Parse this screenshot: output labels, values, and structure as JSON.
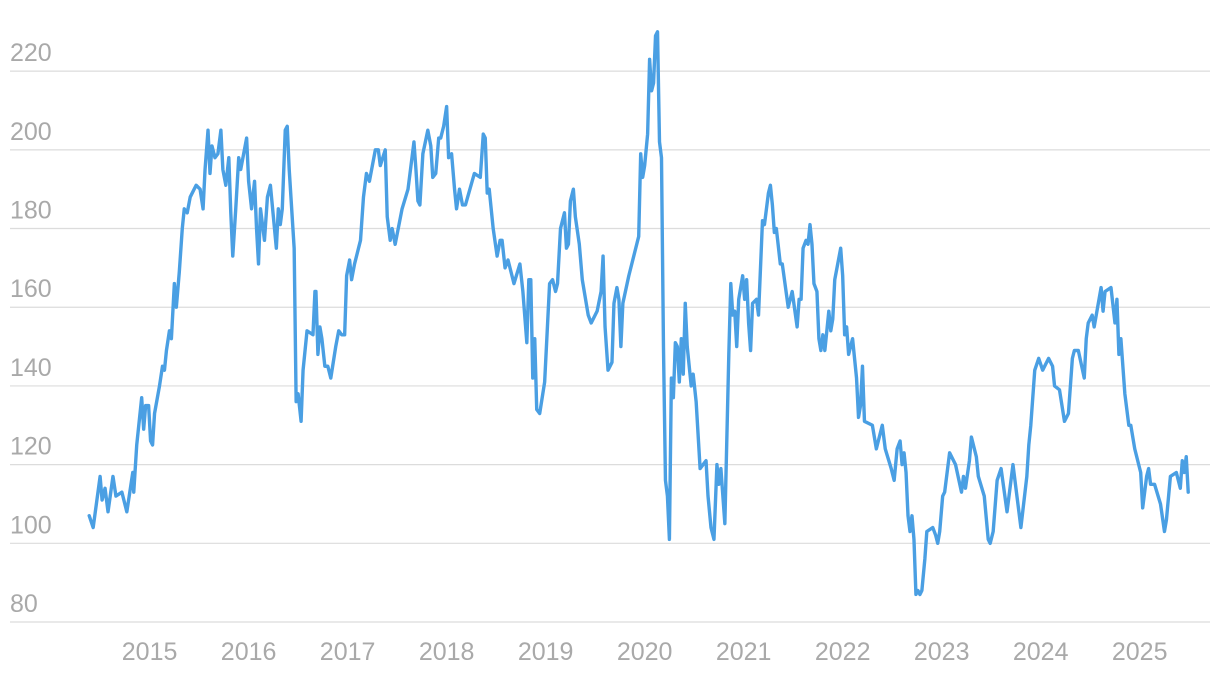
{
  "chart_data": {
    "type": "line",
    "color": "#4a9fe3",
    "grid": true,
    "xlim": [
      2013.59,
      2025.71
    ],
    "xticks": [
      2015,
      2016,
      2017,
      2018,
      2019,
      2020,
      2021,
      2022,
      2023,
      2024,
      2025
    ],
    "ylim": [
      80,
      230
    ],
    "yticks": [
      80,
      100,
      120,
      140,
      160,
      180,
      200,
      220
    ],
    "x": [
      2014.39,
      2014.43,
      2014.5,
      2014.52,
      2014.55,
      2014.58,
      2014.63,
      2014.66,
      2014.72,
      2014.77,
      2014.83,
      2014.84,
      2014.87,
      2014.92,
      2014.94,
      2014.96,
      2014.99,
      2015.01,
      2015.03,
      2015.05,
      2015.1,
      2015.13,
      2015.15,
      2015.17,
      2015.2,
      2015.22,
      2015.25,
      2015.27,
      2015.3,
      2015.33,
      2015.35,
      2015.38,
      2015.41,
      2015.47,
      2015.51,
      2015.54,
      2015.56,
      2015.59,
      2015.61,
      2015.63,
      2015.66,
      2015.69,
      2015.72,
      2015.74,
      2015.77,
      2015.8,
      2015.82,
      2015.84,
      2015.87,
      2015.9,
      2015.92,
      2015.98,
      2016.0,
      2016.03,
      2016.06,
      2016.08,
      2016.1,
      2016.12,
      2016.16,
      2016.19,
      2016.22,
      2016.25,
      2016.28,
      2016.3,
      2016.32,
      2016.34,
      2016.37,
      2016.39,
      2016.41,
      2016.46,
      2016.48,
      2016.5,
      2016.53,
      2016.55,
      2016.59,
      2016.65,
      2016.67,
      2016.68,
      2016.7,
      2016.72,
      2016.74,
      2016.77,
      2016.8,
      2016.83,
      2016.88,
      2016.91,
      2016.94,
      2016.97,
      2016.99,
      2017.02,
      2017.04,
      2017.07,
      2017.13,
      2017.16,
      2017.19,
      2017.22,
      2017.28,
      2017.31,
      2017.33,
      2017.38,
      2017.4,
      2017.43,
      2017.45,
      2017.48,
      2017.55,
      2017.61,
      2017.64,
      2017.67,
      2017.69,
      2017.71,
      2017.73,
      2017.76,
      2017.81,
      2017.84,
      2017.86,
      2017.89,
      2017.92,
      2017.94,
      2017.97,
      2018.0,
      2018.02,
      2018.05,
      2018.08,
      2018.1,
      2018.13,
      2018.16,
      2018.19,
      2018.28,
      2018.34,
      2018.37,
      2018.39,
      2018.41,
      2018.43,
      2018.47,
      2018.51,
      2018.54,
      2018.56,
      2018.59,
      2018.62,
      2018.68,
      2018.74,
      2018.77,
      2018.81,
      2018.83,
      2018.85,
      2018.87,
      2018.89,
      2018.91,
      2018.94,
      2018.99,
      2019.02,
      2019.04,
      2019.07,
      2019.1,
      2019.12,
      2019.15,
      2019.19,
      2019.21,
      2019.23,
      2019.25,
      2019.28,
      2019.3,
      2019.34,
      2019.37,
      2019.43,
      2019.46,
      2019.52,
      2019.56,
      2019.58,
      2019.6,
      2019.63,
      2019.67,
      2019.69,
      2019.72,
      2019.74,
      2019.76,
      2019.78,
      2019.84,
      2019.9,
      2019.94,
      2019.96,
      2019.98,
      2020.0,
      2020.03,
      2020.05,
      2020.07,
      2020.09,
      2020.11,
      2020.13,
      2020.15,
      2020.17,
      2020.19,
      2020.21,
      2020.23,
      2020.25,
      2020.27,
      2020.29,
      2020.31,
      2020.33,
      2020.35,
      2020.37,
      2020.39,
      2020.41,
      2020.43,
      2020.47,
      2020.49,
      2020.52,
      2020.56,
      2020.62,
      2020.64,
      2020.67,
      2020.7,
      2020.73,
      2020.75,
      2020.77,
      2020.81,
      2020.85,
      2020.87,
      2020.89,
      2020.91,
      2020.93,
      2020.95,
      2020.99,
      2021.01,
      2021.03,
      2021.05,
      2021.07,
      2021.09,
      2021.13,
      2021.15,
      2021.17,
      2021.19,
      2021.21,
      2021.25,
      2021.27,
      2021.29,
      2021.31,
      2021.33,
      2021.37,
      2021.39,
      2021.45,
      2021.49,
      2021.54,
      2021.56,
      2021.58,
      2021.6,
      2021.63,
      2021.65,
      2021.67,
      2021.69,
      2021.71,
      2021.74,
      2021.76,
      2021.78,
      2021.8,
      2021.82,
      2021.86,
      2021.88,
      2021.9,
      2021.92,
      2021.98,
      2022.0,
      2022.02,
      2022.04,
      2022.06,
      2022.1,
      2022.14,
      2022.16,
      2022.18,
      2022.2,
      2022.22,
      2022.3,
      2022.34,
      2022.4,
      2022.43,
      2022.49,
      2022.52,
      2022.55,
      2022.58,
      2022.6,
      2022.62,
      2022.64,
      2022.66,
      2022.68,
      2022.7,
      2022.72,
      2022.74,
      2022.76,
      2022.78,
      2022.8,
      2022.83,
      2022.85,
      2022.91,
      2022.94,
      2022.96,
      2022.98,
      2023.01,
      2023.03,
      2023.08,
      2023.14,
      2023.2,
      2023.22,
      2023.24,
      2023.28,
      2023.3,
      2023.35,
      2023.37,
      2023.43,
      2023.47,
      2023.49,
      2023.52,
      2023.56,
      2023.6,
      2023.66,
      2023.68,
      2023.72,
      2023.78,
      2023.8,
      2023.86,
      2023.88,
      2023.9,
      2023.94,
      2023.98,
      2024.02,
      2024.08,
      2024.12,
      2024.14,
      2024.19,
      2024.24,
      2024.28,
      2024.32,
      2024.34,
      2024.38,
      2024.44,
      2024.46,
      2024.48,
      2024.52,
      2024.54,
      2024.61,
      2024.63,
      2024.65,
      2024.71,
      2024.75,
      2024.77,
      2024.79,
      2024.81,
      2024.85,
      2024.89,
      2024.91,
      2024.95,
      2025.01,
      2025.03,
      2025.07,
      2025.09,
      2025.11,
      2025.15,
      2025.21,
      2025.25,
      2025.27,
      2025.31,
      2025.37,
      2025.41,
      2025.43,
      2025.45,
      2025.47,
      2025.49
    ],
    "values": [
      107,
      104,
      117,
      111,
      114,
      108,
      117,
      112,
      113,
      108,
      118,
      113,
      125,
      137,
      129,
      135,
      135,
      126,
      125,
      133,
      140,
      145,
      144,
      149,
      154,
      152,
      166,
      160,
      169,
      180,
      185,
      184,
      188,
      191,
      190,
      185,
      195,
      205,
      194,
      201,
      198,
      199,
      205,
      195,
      191,
      198,
      184,
      173,
      185,
      198,
      195,
      203,
      192,
      185,
      192,
      180,
      171,
      185,
      177,
      188,
      191,
      183,
      175,
      185,
      181,
      185,
      205,
      206,
      195,
      175,
      136,
      138,
      131,
      144,
      154,
      153,
      164,
      164,
      148,
      155,
      152,
      145,
      145,
      142,
      150,
      154,
      153,
      153,
      168,
      172,
      167,
      171,
      177,
      188,
      194,
      192,
      200,
      200,
      196,
      200,
      183,
      177,
      180,
      176,
      185,
      190,
      196,
      202,
      195,
      187,
      186,
      199,
      205,
      201,
      193,
      194,
      203,
      203,
      206,
      211,
      198,
      199,
      190,
      185,
      190,
      186,
      186,
      194,
      193,
      204,
      203,
      189,
      190,
      180,
      173,
      177,
      177,
      170,
      172,
      166,
      171,
      164,
      151,
      167,
      167,
      142,
      152,
      134,
      133,
      141,
      156,
      166,
      167,
      164,
      166,
      180,
      184,
      175,
      176,
      187,
      190,
      183,
      176,
      167,
      158,
      156,
      159,
      164,
      173,
      155,
      144,
      146,
      161,
      165,
      162,
      150,
      161,
      168,
      174,
      178,
      199,
      193,
      196,
      204,
      223,
      215,
      217,
      229,
      230,
      202,
      198,
      150,
      116,
      112,
      101,
      142,
      137,
      151,
      150,
      141,
      152,
      143,
      161,
      150,
      140,
      143,
      136,
      119,
      121,
      112,
      104,
      101,
      120,
      115,
      119,
      105,
      148,
      166,
      158,
      159,
      150,
      162,
      168,
      162,
      167,
      156,
      149,
      161,
      162,
      158,
      170,
      182,
      181,
      189,
      191,
      186,
      179,
      180,
      171,
      171,
      160,
      164,
      155,
      162,
      162,
      175,
      177,
      176,
      181,
      176,
      166,
      164,
      152,
      149,
      153,
      149,
      159,
      154,
      157,
      167,
      175,
      168,
      153,
      155,
      148,
      152,
      142,
      132,
      135,
      145,
      131,
      130,
      124,
      130,
      124,
      119,
      116,
      124,
      126,
      120,
      123,
      118,
      107,
      103,
      107,
      101,
      87,
      88,
      87,
      88,
      96,
      103,
      104,
      102,
      100,
      103,
      112,
      113,
      123,
      120,
      113,
      117,
      114,
      121,
      127,
      122,
      117,
      112,
      101,
      100,
      103,
      116,
      119,
      108,
      112,
      120,
      108,
      104,
      117,
      125,
      130,
      144,
      147,
      144,
      147,
      145,
      140,
      139,
      131,
      133,
      147,
      149,
      149,
      142,
      152,
      156,
      158,
      155,
      165,
      159,
      164,
      165,
      156,
      162,
      148,
      152,
      138,
      130,
      130,
      124,
      118,
      109,
      117,
      119,
      115,
      115,
      110,
      103,
      106,
      117,
      118,
      114,
      121,
      118,
      122,
      113
    ]
  }
}
